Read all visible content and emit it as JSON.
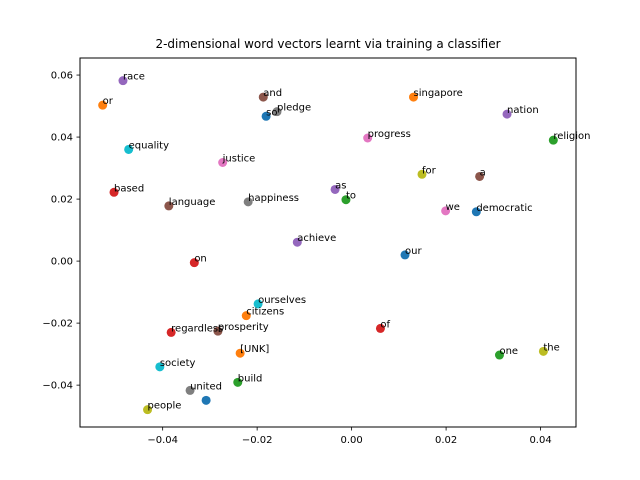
{
  "chart_data": {
    "type": "scatter",
    "title": "2-dimensional word vectors learnt via training a classifier",
    "xlabel": "",
    "ylabel": "",
    "xlim": [
      -0.0575,
      0.0475
    ],
    "ylim": [
      -0.0535,
      0.0655
    ],
    "x_ticks": [
      {
        "value": -0.04,
        "label": "−0.04"
      },
      {
        "value": -0.02,
        "label": "−0.02"
      },
      {
        "value": 0.0,
        "label": "0.00"
      },
      {
        "value": 0.02,
        "label": "0.02"
      },
      {
        "value": 0.04,
        "label": "0.04"
      }
    ],
    "y_ticks": [
      {
        "value": -0.04,
        "label": "−0.04"
      },
      {
        "value": -0.02,
        "label": "−0.02"
      },
      {
        "value": 0.0,
        "label": "0.00"
      },
      {
        "value": 0.02,
        "label": "0.02"
      },
      {
        "value": 0.04,
        "label": "0.04"
      },
      {
        "value": 0.06,
        "label": "0.06"
      }
    ],
    "grid": false,
    "points": [
      {
        "label": "race",
        "x": -0.0484,
        "y": 0.0582,
        "color": "#9467bd"
      },
      {
        "label": "or",
        "x": -0.0527,
        "y": 0.0503,
        "color": "#ff7f0e"
      },
      {
        "label": "and",
        "x": -0.0187,
        "y": 0.0529,
        "color": "#8c564b"
      },
      {
        "label": "pledge",
        "x": -0.0158,
        "y": 0.0482,
        "color": "#7f7f7f"
      },
      {
        "label": "so",
        "x": -0.0181,
        "y": 0.0467,
        "color": "#1f77b4"
      },
      {
        "label": "singapore",
        "x": 0.0131,
        "y": 0.0529,
        "color": "#ff7f0e"
      },
      {
        "label": "nation",
        "x": 0.0329,
        "y": 0.0474,
        "color": "#9467bd"
      },
      {
        "label": "religion",
        "x": 0.0427,
        "y": 0.039,
        "color": "#2ca02c"
      },
      {
        "label": "progress",
        "x": 0.0034,
        "y": 0.0397,
        "color": "#e377c2"
      },
      {
        "label": "equality",
        "x": -0.0472,
        "y": 0.036,
        "color": "#17becf"
      },
      {
        "label": "justice",
        "x": -0.0273,
        "y": 0.0318,
        "color": "#e377c2"
      },
      {
        "label": "for",
        "x": 0.0149,
        "y": 0.028,
        "color": "#bcbd22"
      },
      {
        "label": "a",
        "x": 0.0271,
        "y": 0.0273,
        "color": "#8c564b"
      },
      {
        "label": "as",
        "x": -0.0035,
        "y": 0.0231,
        "color": "#9467bd"
      },
      {
        "label": "to",
        "x": -0.0012,
        "y": 0.0198,
        "color": "#2ca02c"
      },
      {
        "label": "based",
        "x": -0.0503,
        "y": 0.0222,
        "color": "#d62728"
      },
      {
        "label": "language",
        "x": -0.0387,
        "y": 0.0178,
        "color": "#8c564b"
      },
      {
        "label": "happiness",
        "x": -0.0219,
        "y": 0.0191,
        "color": "#7f7f7f"
      },
      {
        "label": "we",
        "x": 0.0199,
        "y": 0.0162,
        "color": "#e377c2"
      },
      {
        "label": "democratic",
        "x": 0.0264,
        "y": 0.0159,
        "color": "#1f77b4"
      },
      {
        "label": "achieve",
        "x": -0.0115,
        "y": 0.0061,
        "color": "#9467bd"
      },
      {
        "label": "our",
        "x": 0.0113,
        "y": 0.002,
        "color": "#1f77b4"
      },
      {
        "label": "on",
        "x": -0.0333,
        "y": -0.0005,
        "color": "#d62728"
      },
      {
        "label": "ourselves",
        "x": -0.0198,
        "y": -0.0138,
        "color": "#17becf"
      },
      {
        "label": "citizens",
        "x": -0.0223,
        "y": -0.0176,
        "color": "#ff7f0e"
      },
      {
        "label": "of",
        "x": 0.0061,
        "y": -0.0217,
        "color": "#d62728"
      },
      {
        "label": "regardless",
        "x": -0.0382,
        "y": -0.023,
        "color": "#d62728"
      },
      {
        "label": "prosperity",
        "x": -0.0283,
        "y": -0.0226,
        "color": "#8c564b"
      },
      {
        "label": "[UNK]",
        "x": -0.0236,
        "y": -0.0297,
        "color": "#ff7f0e"
      },
      {
        "label": "the",
        "x": 0.0406,
        "y": -0.0291,
        "color": "#bcbd22"
      },
      {
        "label": "one",
        "x": 0.0313,
        "y": -0.0303,
        "color": "#2ca02c"
      },
      {
        "label": "society",
        "x": -0.0406,
        "y": -0.0341,
        "color": "#17becf"
      },
      {
        "label": "build",
        "x": -0.0241,
        "y": -0.0391,
        "color": "#2ca02c"
      },
      {
        "label": "united",
        "x": -0.0342,
        "y": -0.0417,
        "color": "#7f7f7f"
      },
      {
        "label": "",
        "x": -0.0308,
        "y": -0.0449,
        "color": "#1f77b4"
      },
      {
        "label": "people",
        "x": -0.0432,
        "y": -0.0479,
        "color": "#bcbd22"
      }
    ]
  }
}
